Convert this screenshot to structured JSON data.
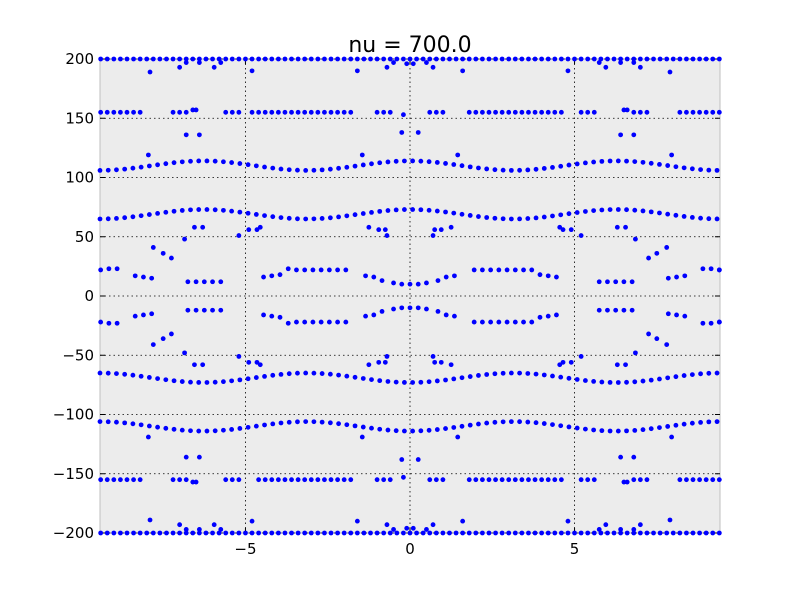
{
  "chart_data": {
    "type": "scatter",
    "title": "nu = 700.0",
    "xlabel": "",
    "ylabel": "",
    "xlim": [
      -9.42,
      9.42
    ],
    "ylim": [
      -200,
      200
    ],
    "xticks": [
      -5,
      0,
      5
    ],
    "xtick_labels": [
      "−5",
      "0",
      "5"
    ],
    "yticks": [
      -200,
      -150,
      -100,
      -50,
      0,
      50,
      100,
      150,
      200
    ],
    "ytick_labels": [
      "−200",
      "−150",
      "−100",
      "−50",
      "0",
      "50",
      "100",
      "150",
      "200"
    ],
    "grid": true,
    "marker_color": "#0000ff",
    "plot_background": "#ececec",
    "series": [
      {
        "description": "bands: y = base + amp*cos(2*pi*x/6.28), sampled every 0.25 in x",
        "bands": [
          {
            "base": 110,
            "amp": 4
          },
          {
            "base": -110,
            "amp": -4
          },
          {
            "base": 69,
            "amp": 4
          },
          {
            "base": -69,
            "amp": -4
          }
        ],
        "x_step": 0.25,
        "points": [
          [
            -7.95,
            119
          ],
          [
            -7.95,
            -119
          ],
          [
            -6.6,
            157
          ],
          [
            -6.5,
            157
          ],
          [
            -6.6,
            -157
          ],
          [
            -6.5,
            -157
          ],
          [
            -6.8,
            136
          ],
          [
            -6.4,
            136
          ],
          [
            -6.8,
            -136
          ],
          [
            -6.4,
            -136
          ],
          [
            -7.9,
            189
          ],
          [
            -7.0,
            193
          ],
          [
            -6.8,
            197
          ],
          [
            -5.95,
            193
          ],
          [
            -5.75,
            197
          ],
          [
            -6.4,
            197
          ],
          [
            -7.9,
            -189
          ],
          [
            -7.0,
            -193
          ],
          [
            -6.8,
            -197
          ],
          [
            -5.95,
            -193
          ],
          [
            -5.75,
            -197
          ],
          [
            -6.4,
            -197
          ],
          [
            -4.8,
            190
          ],
          [
            -4.8,
            -190
          ],
          [
            -1.6,
            190
          ],
          [
            -1.6,
            -190
          ],
          [
            -1.45,
            119
          ],
          [
            -1.45,
            -119
          ],
          [
            -0.2,
            153
          ],
          [
            -0.2,
            -153
          ],
          [
            -0.25,
            138
          ],
          [
            0.25,
            138
          ],
          [
            -0.25,
            -138
          ],
          [
            0.25,
            -138
          ],
          [
            -0.7,
            193
          ],
          [
            -0.5,
            197
          ],
          [
            0.5,
            197
          ],
          [
            0.7,
            193
          ],
          [
            -0.1,
            196
          ],
          [
            0.1,
            196
          ],
          [
            -0.7,
            -193
          ],
          [
            -0.5,
            -197
          ],
          [
            0.5,
            -197
          ],
          [
            0.7,
            -193
          ],
          [
            -0.1,
            -196
          ],
          [
            0.1,
            -196
          ],
          [
            1.6,
            190
          ],
          [
            1.6,
            -190
          ],
          [
            1.45,
            119
          ],
          [
            1.45,
            -119
          ],
          [
            4.8,
            190
          ],
          [
            4.8,
            -190
          ],
          [
            5.95,
            193
          ],
          [
            5.75,
            197
          ],
          [
            6.4,
            197
          ],
          [
            5.95,
            -193
          ],
          [
            5.75,
            -197
          ],
          [
            6.4,
            -197
          ],
          [
            6.6,
            157
          ],
          [
            6.5,
            157
          ],
          [
            6.6,
            -157
          ],
          [
            6.5,
            -157
          ],
          [
            6.8,
            136
          ],
          [
            6.4,
            136
          ],
          [
            6.8,
            -136
          ],
          [
            6.4,
            -136
          ],
          [
            7.0,
            193
          ],
          [
            6.8,
            197
          ],
          [
            7.9,
            189
          ],
          [
            7.0,
            -193
          ],
          [
            6.8,
            -197
          ],
          [
            7.9,
            -189
          ],
          [
            7.95,
            119
          ],
          [
            7.95,
            -119
          ]
        ],
        "segments": [
          {
            "y": 155,
            "x": [
              -9.4,
              -9.2,
              -9.0,
              -8.8,
              -8.6,
              -8.4,
              -8.2,
              -7.2,
              -7.0,
              -6.8,
              -5.6,
              -5.4,
              -5.2,
              -4.8,
              -4.6,
              -4.4,
              -4.2,
              -4.0,
              -3.8,
              -3.6,
              -3.4,
              -3.2,
              -3.0,
              -2.8,
              -2.6,
              -2.4,
              -2.2,
              -2.0,
              -1.8,
              -1.0,
              -0.8,
              -0.6,
              0.6,
              0.8,
              1.0,
              1.8,
              2.0,
              2.2,
              2.4,
              2.6,
              2.8,
              3.0,
              3.2,
              3.4,
              3.6,
              3.8,
              4.0,
              4.2,
              4.4,
              4.6,
              5.2,
              5.4,
              5.6,
              6.8,
              7.0,
              7.2,
              8.2,
              8.4,
              8.6,
              8.8,
              9.0,
              9.2,
              9.4
            ]
          },
          {
            "y": -155,
            "x": [
              -9.4,
              -9.2,
              -9.0,
              -8.8,
              -8.6,
              -8.4,
              -8.2,
              -7.2,
              -7.0,
              -6.8,
              -5.6,
              -5.4,
              -5.2,
              -4.6,
              -4.4,
              -4.2,
              -4.0,
              -3.8,
              -3.6,
              -3.4,
              -3.2,
              -3.0,
              -2.8,
              -2.6,
              -2.4,
              -2.2,
              -2.0,
              -1.8,
              -1.0,
              -0.8,
              -0.6,
              0.6,
              0.8,
              1.0,
              1.8,
              2.0,
              2.2,
              2.4,
              2.6,
              2.8,
              3.0,
              3.2,
              3.4,
              3.6,
              3.8,
              4.0,
              4.2,
              4.4,
              4.6,
              5.2,
              5.4,
              5.6,
              6.8,
              7.0,
              7.2,
              8.2,
              8.4,
              8.6,
              8.8,
              9.0,
              9.2,
              9.4
            ]
          },
          {
            "y": 200,
            "x": [
              -9.4,
              -9.2,
              -9.0,
              -8.8,
              -8.6,
              -8.4,
              -8.2,
              -8.0,
              -7.8,
              -7.6,
              -7.4,
              -7.2,
              -7.0,
              -6.8,
              -6.6,
              -6.4,
              -6.2,
              -6.0,
              -5.8,
              -5.6,
              -5.4,
              -5.2,
              -5.0,
              -4.8,
              -4.6,
              -4.4,
              -4.2,
              -4.0,
              -3.8,
              -3.6,
              -3.4,
              -3.2,
              -3.0,
              -2.8,
              -2.6,
              -2.4,
              -2.2,
              -2.0,
              -1.8,
              -1.6,
              -1.4,
              -1.2,
              -1.0,
              -0.8,
              -0.6,
              -0.4,
              -0.2,
              0.0,
              0.2,
              0.4,
              0.6,
              0.8,
              1.0,
              1.2,
              1.4,
              1.6,
              1.8,
              2.0,
              2.2,
              2.4,
              2.6,
              2.8,
              3.0,
              3.2,
              3.4,
              3.6,
              3.8,
              4.0,
              4.2,
              4.4,
              4.6,
              4.8,
              5.0,
              5.2,
              5.4,
              5.6,
              5.8,
              6.0,
              6.2,
              6.4,
              6.6,
              6.8,
              7.0,
              7.2,
              7.4,
              7.6,
              7.8,
              8.0,
              8.2,
              8.4,
              8.6,
              8.8,
              9.0,
              9.2,
              9.4
            ]
          },
          {
            "y": -200,
            "x": [
              -9.4,
              -9.2,
              -9.0,
              -8.8,
              -8.6,
              -8.4,
              -8.2,
              -8.0,
              -7.8,
              -7.6,
              -7.4,
              -7.2,
              -7.0,
              -6.8,
              -6.6,
              -6.4,
              -6.2,
              -6.0,
              -5.8,
              -5.6,
              -5.4,
              -5.2,
              -5.0,
              -4.8,
              -4.6,
              -4.4,
              -4.2,
              -4.0,
              -3.8,
              -3.6,
              -3.4,
              -3.2,
              -3.0,
              -2.8,
              -2.6,
              -2.4,
              -2.2,
              -2.0,
              -1.8,
              -1.6,
              -1.4,
              -1.2,
              -1.0,
              -0.8,
              -0.6,
              -0.4,
              -0.2,
              0.0,
              0.2,
              0.4,
              0.6,
              0.8,
              1.0,
              1.2,
              1.4,
              1.6,
              1.8,
              2.0,
              2.2,
              2.4,
              2.6,
              2.8,
              3.0,
              3.2,
              3.4,
              3.6,
              3.8,
              4.0,
              4.2,
              4.4,
              4.6,
              4.8,
              5.0,
              5.2,
              5.4,
              5.6,
              5.8,
              6.0,
              6.2,
              6.4,
              6.6,
              6.8,
              7.0,
              7.2,
              7.4,
              7.6,
              7.8,
              8.0,
              8.2,
              8.4,
              8.6,
              8.8,
              9.0,
              9.2,
              9.4
            ]
          }
        ],
        "inner_bands": [
          {
            "sign": 1,
            "y": [
              22,
              23,
              23,
              17,
              16,
              15,
              0,
              0,
              12,
              12,
              12,
              12,
              12,
              0,
              0,
              16,
              17,
              18,
              23,
              22,
              22,
              22,
              22,
              22,
              22,
              22,
              0,
              17,
              16,
              13,
              0,
              0,
              11,
              10,
              10,
              10,
              11,
              0,
              0,
              13,
              16,
              17,
              0,
              22,
              22,
              22,
              22,
              22,
              22,
              22,
              22,
              18,
              17,
              16,
              0,
              0,
              12,
              12,
              12,
              12,
              12,
              0,
              0,
              15,
              16,
              17,
              23,
              23,
              22,
              22
            ]
          },
          {
            "sign": -1,
            "y": [
              22,
              23,
              23,
              17,
              16,
              15,
              0,
              0,
              12,
              12,
              12,
              12,
              12,
              0,
              0,
              16,
              17,
              18,
              23,
              22,
              22,
              22,
              22,
              22,
              22,
              22,
              0,
              17,
              16,
              13,
              0,
              0,
              11,
              10,
              10,
              10,
              11,
              0,
              0,
              13,
              16,
              17,
              0,
              22,
              22,
              22,
              22,
              22,
              22,
              22,
              22,
              18,
              17,
              16,
              0,
              0,
              12,
              12,
              12,
              12,
              12,
              0,
              0,
              15,
              16,
              17,
              23,
              23,
              22,
              22
            ]
          }
        ],
        "inner_band_x": [
          -9.4,
          -9.15,
          -8.9,
          -8.35,
          -8.1,
          -7.85,
          0,
          0,
          -6.75,
          -6.5,
          -6.25,
          -6.0,
          -5.75,
          0,
          0,
          -4.45,
          -4.2,
          -3.95,
          -3.7,
          -3.45,
          -3.2,
          -2.95,
          -2.7,
          -2.45,
          -2.2,
          -1.95,
          0,
          -1.35,
          -1.1,
          -0.85,
          0,
          0,
          -0.5,
          -0.25,
          0.0,
          0.25,
          0.5,
          0,
          0,
          0.85,
          1.1,
          1.35,
          0,
          1.95,
          2.2,
          2.45,
          2.7,
          2.95,
          3.2,
          3.45,
          3.7,
          3.95,
          4.2,
          4.45,
          0,
          0,
          5.75,
          6.0,
          6.25,
          6.5,
          6.75,
          0,
          0,
          7.85,
          8.1,
          8.35,
          8.9,
          9.15,
          9.4,
          9.4
        ],
        "side_points": [
          [
            -7.8,
            41
          ],
          [
            -7.5,
            36
          ],
          [
            -7.25,
            32
          ],
          [
            -6.85,
            48
          ],
          [
            -6.55,
            58
          ],
          [
            -6.3,
            58
          ],
          [
            -5.2,
            51
          ],
          [
            -4.9,
            56
          ],
          [
            -4.65,
            56
          ],
          [
            -4.55,
            58
          ],
          [
            -1.25,
            58
          ],
          [
            -0.95,
            56
          ],
          [
            -0.75,
            56
          ],
          [
            -0.7,
            51
          ],
          [
            0.7,
            51
          ],
          [
            0.75,
            56
          ],
          [
            0.95,
            56
          ],
          [
            1.25,
            58
          ],
          [
            4.55,
            58
          ],
          [
            4.65,
            56
          ],
          [
            4.9,
            56
          ],
          [
            5.2,
            51
          ],
          [
            6.3,
            58
          ],
          [
            6.55,
            58
          ],
          [
            6.85,
            48
          ],
          [
            7.25,
            32
          ],
          [
            7.5,
            36
          ],
          [
            7.8,
            41
          ]
        ]
      }
    ]
  }
}
